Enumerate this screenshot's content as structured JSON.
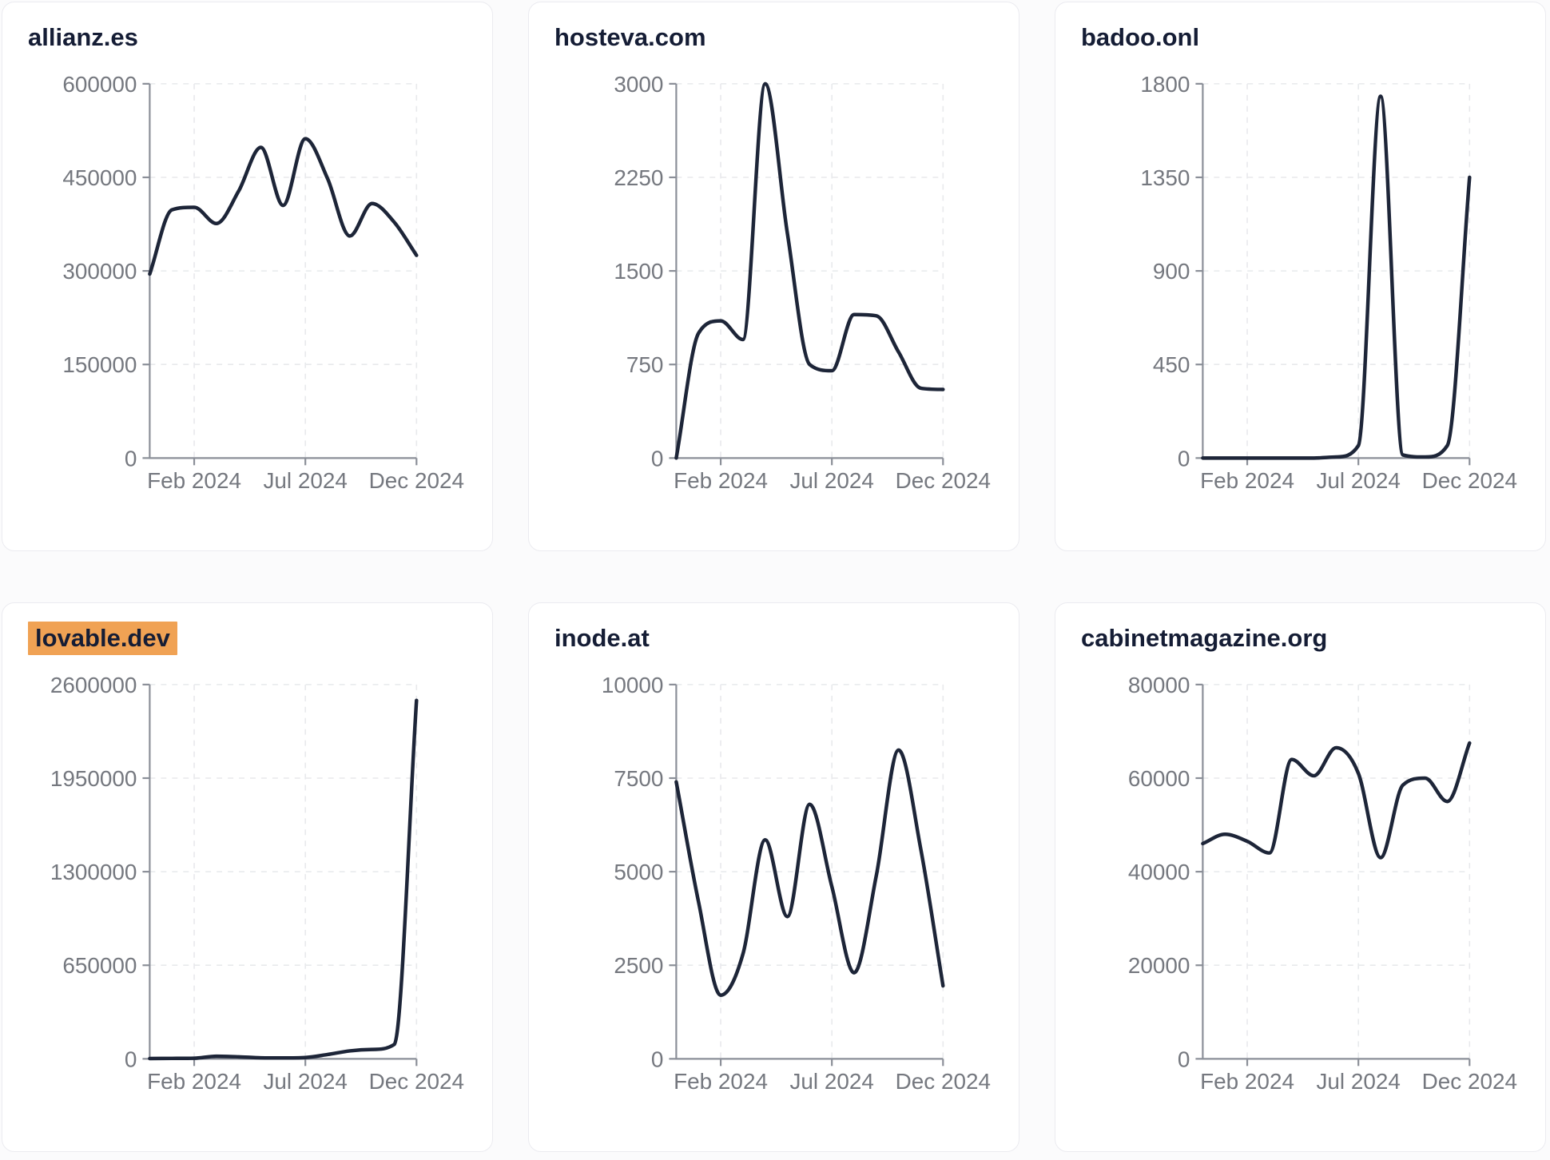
{
  "style": {
    "page_background": "#fbfbfc",
    "card_background": "#ffffff",
    "card_border": "#ebebf0",
    "title_color": "#151d35",
    "highlight_color": "#f0a254",
    "axis_color": "#8b8f98",
    "tick_label_color": "#75787f",
    "grid_color": "#e8e9ec",
    "line_color": "#1d2538"
  },
  "chart_data": [
    {
      "type": "line",
      "title": "allianz.es",
      "title_highlight": false,
      "x": [
        "Dec 2023",
        "Jan 2024",
        "Feb 2024",
        "Mar 2024",
        "Apr 2024",
        "May 2024",
        "Jun 2024",
        "Jul 2024",
        "Aug 2024",
        "Sep 2024",
        "Oct 2024",
        "Nov 2024",
        "Dec 2024"
      ],
      "values": [
        295000,
        398000,
        402000,
        376000,
        428000,
        498000,
        405000,
        512000,
        448000,
        356000,
        408000,
        378000,
        325000
      ],
      "ylim": [
        0,
        600000
      ],
      "y_ticks": [
        0,
        150000,
        300000,
        450000,
        600000
      ],
      "x_tick_indices": [
        2,
        7,
        12
      ],
      "x_tick_labels": [
        "Feb 2024",
        "Jul 2024",
        "Dec 2024"
      ],
      "grid": true,
      "legend": "none",
      "line_color": "#1d2538"
    },
    {
      "type": "line",
      "title": "hosteva.com",
      "title_highlight": false,
      "x": [
        "Dec 2023",
        "Jan 2024",
        "Feb 2024",
        "Mar 2024",
        "Apr 2024",
        "May 2024",
        "Jun 2024",
        "Jul 2024",
        "Aug 2024",
        "Sep 2024",
        "Oct 2024",
        "Nov 2024",
        "Dec 2024"
      ],
      "values": [
        0,
        1000,
        1100,
        950,
        3000,
        1800,
        750,
        700,
        1150,
        1140,
        850,
        560,
        550
      ],
      "ylim": [
        0,
        3000
      ],
      "y_ticks": [
        0,
        750,
        1500,
        2250,
        3000
      ],
      "x_tick_indices": [
        2,
        7,
        12
      ],
      "x_tick_labels": [
        "Feb 2024",
        "Jul 2024",
        "Dec 2024"
      ],
      "grid": true,
      "legend": "none",
      "line_color": "#1d2538"
    },
    {
      "type": "line",
      "title": "badoo.onl",
      "title_highlight": false,
      "x": [
        "Dec 2023",
        "Jan 2024",
        "Feb 2024",
        "Mar 2024",
        "Apr 2024",
        "May 2024",
        "Jun 2024",
        "Jul 2024",
        "Aug 2024",
        "Sep 2024",
        "Oct 2024",
        "Nov 2024",
        "Dec 2024"
      ],
      "values": [
        0,
        0,
        0,
        0,
        0,
        0,
        5,
        60,
        1740,
        15,
        5,
        60,
        1350
      ],
      "ylim": [
        0,
        1800
      ],
      "y_ticks": [
        0,
        450,
        900,
        1350,
        1800
      ],
      "x_tick_indices": [
        2,
        7,
        12
      ],
      "x_tick_labels": [
        "Feb 2024",
        "Jul 2024",
        "Dec 2024"
      ],
      "grid": true,
      "legend": "none",
      "line_color": "#1d2538"
    },
    {
      "type": "line",
      "title": "lovable.dev",
      "title_highlight": true,
      "x": [
        "Dec 2023",
        "Jan 2024",
        "Feb 2024",
        "Mar 2024",
        "Apr 2024",
        "May 2024",
        "Jun 2024",
        "Jul 2024",
        "Aug 2024",
        "Sep 2024",
        "Oct 2024",
        "Nov 2024",
        "Dec 2024"
      ],
      "values": [
        2000,
        3000,
        4000,
        18000,
        14000,
        7000,
        6000,
        9000,
        30000,
        55000,
        65000,
        100000,
        2490000
      ],
      "ylim": [
        0,
        2600000
      ],
      "y_ticks": [
        0,
        650000,
        1300000,
        1950000,
        2600000
      ],
      "x_tick_indices": [
        2,
        7,
        12
      ],
      "x_tick_labels": [
        "Feb 2024",
        "Jul 2024",
        "Dec 2024"
      ],
      "grid": true,
      "legend": "none",
      "line_color": "#1d2538"
    },
    {
      "type": "line",
      "title": "inode.at",
      "title_highlight": false,
      "x": [
        "Dec 2023",
        "Jan 2024",
        "Feb 2024",
        "Mar 2024",
        "Apr 2024",
        "May 2024",
        "Jun 2024",
        "Jul 2024",
        "Aug 2024",
        "Sep 2024",
        "Oct 2024",
        "Nov 2024",
        "Dec 2024"
      ],
      "values": [
        7400,
        4200,
        1700,
        2800,
        5850,
        3800,
        6800,
        4600,
        2300,
        4900,
        8250,
        5600,
        1950
      ],
      "ylim": [
        0,
        10000
      ],
      "y_ticks": [
        0,
        2500,
        5000,
        7500,
        10000
      ],
      "x_tick_indices": [
        2,
        7,
        12
      ],
      "x_tick_labels": [
        "Feb 2024",
        "Jul 2024",
        "Dec 2024"
      ],
      "grid": true,
      "legend": "none",
      "line_color": "#1d2538"
    },
    {
      "type": "line",
      "title": "cabinetmagazine.org",
      "title_highlight": false,
      "x": [
        "Dec 2023",
        "Jan 2024",
        "Feb 2024",
        "Mar 2024",
        "Apr 2024",
        "May 2024",
        "Jun 2024",
        "Jul 2024",
        "Aug 2024",
        "Sep 2024",
        "Oct 2024",
        "Nov 2024",
        "Dec 2024"
      ],
      "values": [
        46000,
        48000,
        46500,
        44000,
        64000,
        60500,
        66500,
        61000,
        43000,
        58500,
        60000,
        55000,
        67500
      ],
      "ylim": [
        0,
        80000
      ],
      "y_ticks": [
        0,
        20000,
        40000,
        60000,
        80000
      ],
      "x_tick_indices": [
        2,
        7,
        12
      ],
      "x_tick_labels": [
        "Feb 2024",
        "Jul 2024",
        "Dec 2024"
      ],
      "grid": true,
      "legend": "none",
      "line_color": "#1d2538"
    }
  ]
}
